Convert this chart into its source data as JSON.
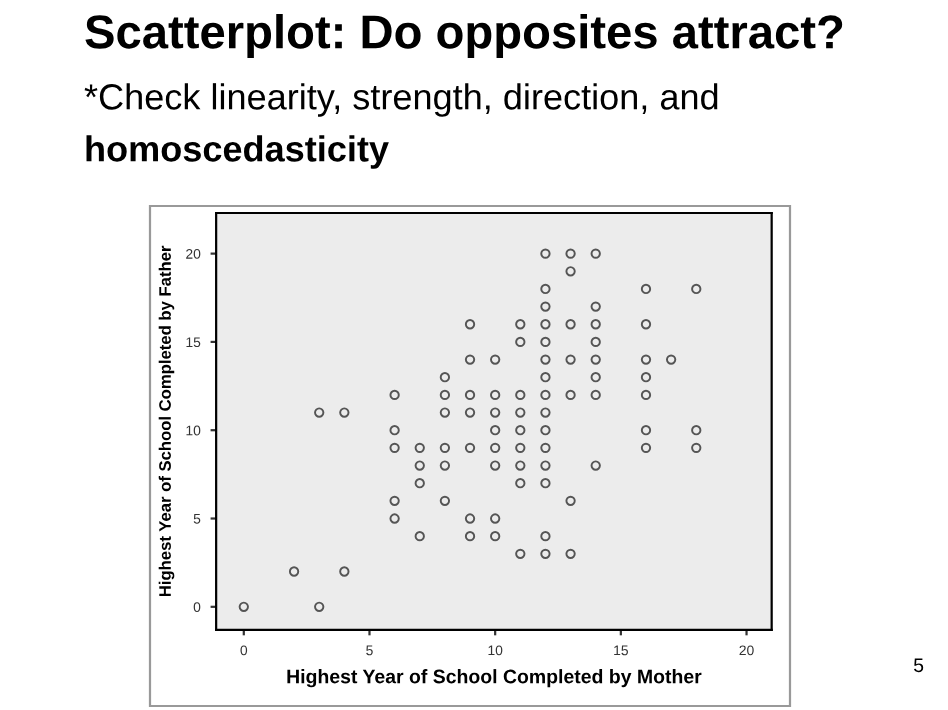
{
  "chart_data": {
    "type": "scatter",
    "title": "Scatterplot: Do opposites attract?",
    "subtitle": "*Check linearity, strength, direction, and homoscedasticity",
    "xlabel": "Highest Year of School Completed by Mother",
    "ylabel": "Highest Year of School Completed by Father",
    "series": [
      {
        "color": "#555555",
        "x": [
          12,
          13,
          14,
          13,
          12,
          16,
          18,
          12,
          14,
          9,
          11,
          12,
          13,
          14,
          16,
          11,
          12,
          14,
          9,
          10,
          12,
          13,
          14,
          16,
          17,
          8,
          12,
          14,
          16,
          6,
          8,
          9,
          10,
          11,
          12,
          13,
          14,
          16,
          3,
          4,
          8,
          9,
          10,
          11,
          12,
          6,
          10,
          11,
          12,
          16,
          18,
          6,
          7,
          8,
          9,
          10,
          11,
          12,
          16,
          18,
          7,
          8,
          10,
          11,
          12,
          14,
          7,
          11,
          12,
          6,
          8,
          13,
          6,
          9,
          10,
          7,
          9,
          10,
          12,
          11,
          12,
          13,
          2,
          4,
          0,
          3
        ],
        "values": [
          20,
          20,
          20,
          19,
          18,
          18,
          18,
          17,
          17,
          16,
          16,
          16,
          16,
          16,
          16,
          15,
          15,
          15,
          14,
          14,
          14,
          14,
          14,
          14,
          14,
          13,
          13,
          13,
          13,
          12,
          12,
          12,
          12,
          12,
          12,
          12,
          12,
          12,
          11,
          11,
          11,
          11,
          11,
          11,
          11,
          10,
          10,
          10,
          10,
          10,
          10,
          9,
          9,
          9,
          9,
          9,
          9,
          9,
          9,
          9,
          8,
          8,
          8,
          8,
          8,
          8,
          7,
          7,
          7,
          6,
          6,
          6,
          5,
          5,
          5,
          4,
          4,
          4,
          4,
          3,
          3,
          3,
          2,
          2,
          0,
          0
        ]
      }
    ],
    "xlim": [
      -1.1,
      21
    ],
    "ylim": [
      -1.3,
      22.3
    ],
    "xticks": [
      0,
      5,
      10,
      15,
      20
    ],
    "yticks": [
      0,
      5,
      10,
      15,
      20
    ],
    "marker": "circle",
    "grid": false,
    "legend": false,
    "annotations": [
      "5"
    ]
  }
}
